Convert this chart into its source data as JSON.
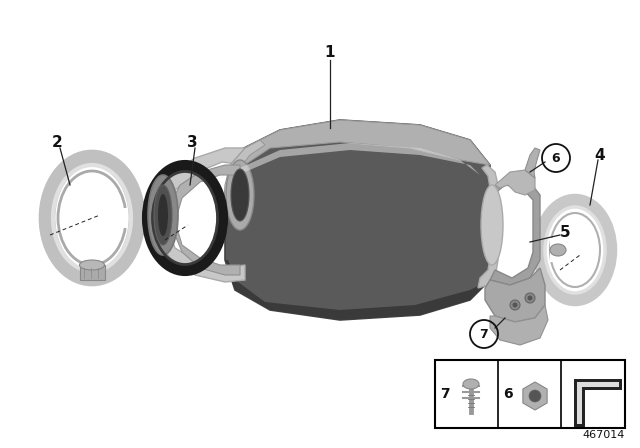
{
  "bg_color": "#ffffff",
  "line_color": "#222222",
  "text_color": "#111111",
  "footer_num": "467014",
  "silver_light": "#d8d8d8",
  "silver_mid": "#b8b8b8",
  "silver_dark": "#888888",
  "dark_gray": "#4a4a4a",
  "cat_body_color": "#5a5a5a",
  "cat_body_light": "#c8c8c8",
  "bracket_color": "#a0a0a0",
  "clamp_color": "#c8c8c8",
  "ring_black": "#1a1a1a",
  "inlet_silver": "#b0b0b0"
}
